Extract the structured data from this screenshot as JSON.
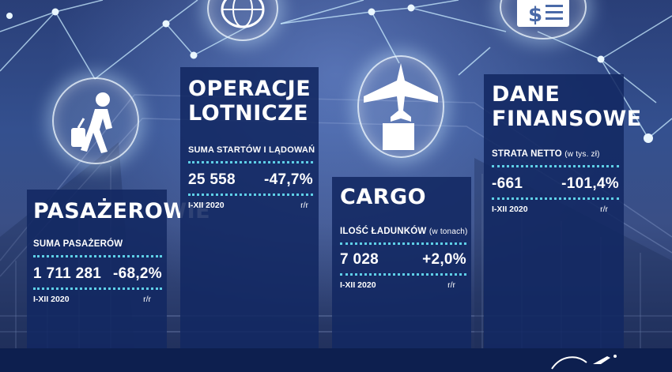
{
  "panels": {
    "passengers": {
      "title": "PASAŻEROWIE",
      "metric_label": "SUMA PASAŻERÓW",
      "value": "1 711 281",
      "change": "-68,2%",
      "period": "I-XII 2020",
      "change_label": "r/r"
    },
    "operations": {
      "title_line1": "OPERACJE",
      "title_line2": "LOTNICZE",
      "metric_label": "SUMA STARTÓW I LĄDOWAŃ",
      "value": "25 558",
      "change": "-47,7%",
      "period": "I-XII 2020",
      "change_label": "r/r"
    },
    "cargo": {
      "title": "CARGO",
      "metric_label": "ILOŚĆ ŁADUNKÓW",
      "metric_unit": "(w tonach)",
      "value": "7 028",
      "change": "+2,0%",
      "period": "I-XII 2020",
      "change_label": "r/r"
    },
    "finance": {
      "title_line1": "DANE",
      "title_line2": "FINANSOWE",
      "metric_label": "STRATA NETTO",
      "metric_unit": "(w tys. zł)",
      "value": "-661",
      "change": "-101,4%",
      "period": "I-XII 2020",
      "change_label": "r/r"
    }
  },
  "icons": [
    "globe-icon",
    "dollar-document-icon",
    "traveler-luggage-icon",
    "airplane-cargo-icon"
  ],
  "colors": {
    "panel": "#12286299",
    "accent_dots": "#5fd0e8",
    "bottom_bar": "#0d1f4f"
  }
}
